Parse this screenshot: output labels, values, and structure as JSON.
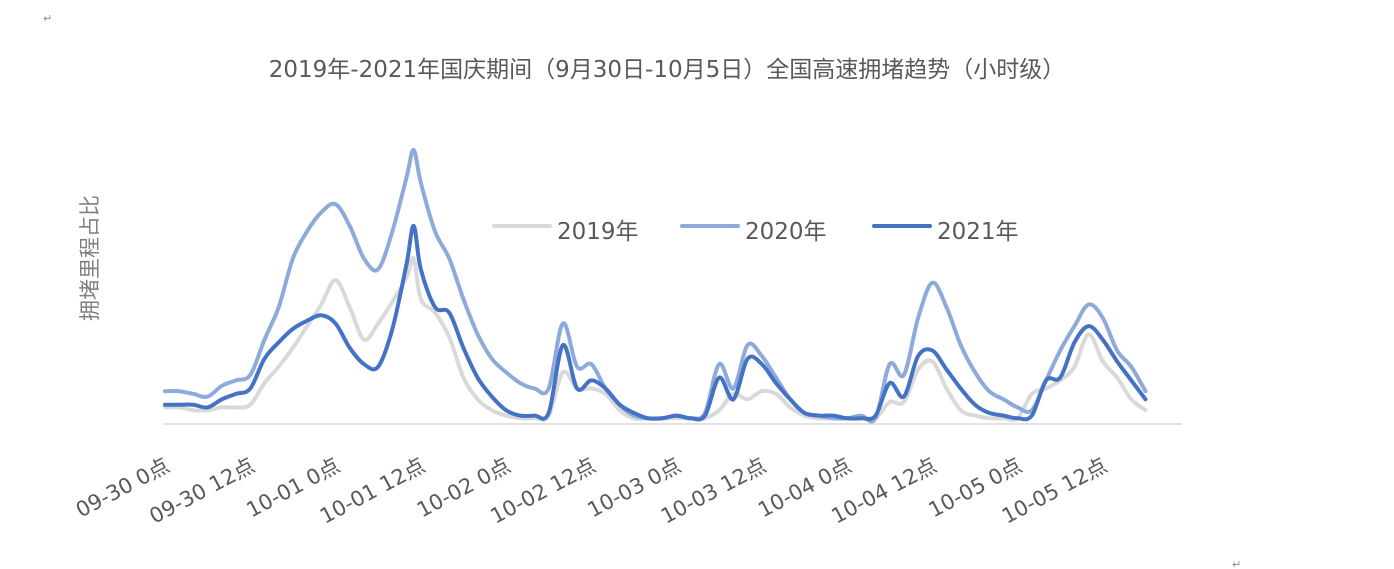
{
  "corner_marks": [
    "↵",
    "↵"
  ],
  "colors": {
    "2019年": "#d9d9d9",
    "2020年": "#8eaadb",
    "2021年": "#4472c4",
    "axis": "#d9d9d9"
  },
  "chart_data": {
    "type": "line",
    "title": "2019年-2021年国庆期间（9月30日-10月5日）全国高速拥堵趋势（小时级）",
    "xlabel": "",
    "ylabel": "拥堵里程占比",
    "y_tick_labels_shown": false,
    "grid": false,
    "legend_position": "top-center",
    "x_tick_labels": [
      "09-30 0点",
      "09-30 12点",
      "10-01 0点",
      "10-01 12点",
      "10-02 0点",
      "10-02 12点",
      "10-03 0点",
      "10-03 12点",
      "10-04 0点",
      "10-04 12点",
      "10-05 0点",
      "10-05 12点"
    ],
    "x_range_hours": [
      0,
      143
    ],
    "ylim": [
      0,
      100
    ],
    "series": [
      {
        "name": "2019年",
        "points": [
          [
            0,
            5
          ],
          [
            2,
            5
          ],
          [
            4,
            4
          ],
          [
            6,
            4
          ],
          [
            8,
            5
          ],
          [
            10,
            5
          ],
          [
            12,
            6
          ],
          [
            14,
            14
          ],
          [
            16,
            20
          ],
          [
            18,
            27
          ],
          [
            20,
            35
          ],
          [
            22,
            43
          ],
          [
            24,
            52
          ],
          [
            26,
            42
          ],
          [
            28,
            30
          ],
          [
            30,
            36
          ],
          [
            32,
            44
          ],
          [
            34,
            53
          ],
          [
            35,
            60
          ],
          [
            36,
            45
          ],
          [
            38,
            40
          ],
          [
            40,
            31
          ],
          [
            42,
            16
          ],
          [
            44,
            8
          ],
          [
            46,
            4
          ],
          [
            48,
            2
          ],
          [
            50,
            1
          ],
          [
            52,
            1
          ],
          [
            54,
            2
          ],
          [
            56,
            18
          ],
          [
            58,
            12
          ],
          [
            60,
            12
          ],
          [
            62,
            10
          ],
          [
            64,
            4
          ],
          [
            66,
            1
          ],
          [
            68,
            1
          ],
          [
            70,
            1
          ],
          [
            72,
            1
          ],
          [
            74,
            1
          ],
          [
            76,
            1
          ],
          [
            78,
            4
          ],
          [
            80,
            10
          ],
          [
            82,
            8
          ],
          [
            84,
            11
          ],
          [
            86,
            10
          ],
          [
            88,
            5
          ],
          [
            90,
            2
          ],
          [
            92,
            1
          ],
          [
            94,
            1
          ],
          [
            96,
            1
          ],
          [
            98,
            1
          ],
          [
            100,
            1
          ],
          [
            102,
            7
          ],
          [
            104,
            7
          ],
          [
            106,
            19
          ],
          [
            108,
            22
          ],
          [
            110,
            12
          ],
          [
            112,
            4
          ],
          [
            114,
            2
          ],
          [
            116,
            1
          ],
          [
            118,
            1
          ],
          [
            120,
            1
          ],
          [
            122,
            10
          ],
          [
            124,
            12
          ],
          [
            126,
            15
          ],
          [
            128,
            20
          ],
          [
            130,
            32
          ],
          [
            132,
            22
          ],
          [
            134,
            16
          ],
          [
            136,
            8
          ],
          [
            138,
            4
          ]
        ]
      },
      {
        "name": "2020年",
        "points": [
          [
            0,
            11
          ],
          [
            2,
            11
          ],
          [
            4,
            10
          ],
          [
            6,
            9
          ],
          [
            8,
            13
          ],
          [
            10,
            15
          ],
          [
            12,
            17
          ],
          [
            14,
            30
          ],
          [
            16,
            42
          ],
          [
            18,
            60
          ],
          [
            20,
            70
          ],
          [
            22,
            77
          ],
          [
            24,
            80
          ],
          [
            26,
            72
          ],
          [
            28,
            60
          ],
          [
            30,
            56
          ],
          [
            32,
            70
          ],
          [
            34,
            90
          ],
          [
            35,
            100
          ],
          [
            36,
            88
          ],
          [
            38,
            70
          ],
          [
            40,
            60
          ],
          [
            42,
            45
          ],
          [
            44,
            32
          ],
          [
            46,
            23
          ],
          [
            48,
            18
          ],
          [
            50,
            14
          ],
          [
            52,
            12
          ],
          [
            54,
            12
          ],
          [
            56,
            36
          ],
          [
            58,
            20
          ],
          [
            60,
            21
          ],
          [
            62,
            12
          ],
          [
            64,
            6
          ],
          [
            66,
            2
          ],
          [
            68,
            1
          ],
          [
            70,
            1
          ],
          [
            72,
            2
          ],
          [
            74,
            1
          ],
          [
            76,
            3
          ],
          [
            78,
            21
          ],
          [
            80,
            12
          ],
          [
            82,
            28
          ],
          [
            84,
            24
          ],
          [
            86,
            16
          ],
          [
            88,
            8
          ],
          [
            90,
            3
          ],
          [
            92,
            2
          ],
          [
            94,
            1
          ],
          [
            96,
            1
          ],
          [
            98,
            2
          ],
          [
            100,
            1
          ],
          [
            102,
            21
          ],
          [
            104,
            17
          ],
          [
            106,
            38
          ],
          [
            108,
            51
          ],
          [
            110,
            42
          ],
          [
            112,
            28
          ],
          [
            114,
            18
          ],
          [
            116,
            11
          ],
          [
            118,
            8
          ],
          [
            120,
            5
          ],
          [
            122,
            4
          ],
          [
            124,
            15
          ],
          [
            126,
            26
          ],
          [
            128,
            35
          ],
          [
            130,
            43
          ],
          [
            132,
            38
          ],
          [
            134,
            26
          ],
          [
            136,
            20
          ],
          [
            138,
            11
          ]
        ]
      },
      {
        "name": "2021年",
        "points": [
          [
            0,
            6
          ],
          [
            2,
            6
          ],
          [
            4,
            6
          ],
          [
            6,
            5
          ],
          [
            8,
            8
          ],
          [
            10,
            10
          ],
          [
            12,
            12
          ],
          [
            14,
            23
          ],
          [
            16,
            29
          ],
          [
            18,
            34
          ],
          [
            20,
            37
          ],
          [
            22,
            39
          ],
          [
            24,
            36
          ],
          [
            26,
            27
          ],
          [
            28,
            21
          ],
          [
            30,
            20
          ],
          [
            32,
            34
          ],
          [
            34,
            58
          ],
          [
            35,
            72
          ],
          [
            36,
            56
          ],
          [
            38,
            42
          ],
          [
            40,
            40
          ],
          [
            42,
            27
          ],
          [
            44,
            16
          ],
          [
            46,
            9
          ],
          [
            48,
            4
          ],
          [
            50,
            2
          ],
          [
            52,
            2
          ],
          [
            54,
            3
          ],
          [
            56,
            28
          ],
          [
            58,
            12
          ],
          [
            60,
            15
          ],
          [
            62,
            12
          ],
          [
            64,
            6
          ],
          [
            66,
            3
          ],
          [
            68,
            1
          ],
          [
            70,
            1
          ],
          [
            72,
            2
          ],
          [
            74,
            1
          ],
          [
            76,
            2
          ],
          [
            78,
            16
          ],
          [
            80,
            8
          ],
          [
            82,
            23
          ],
          [
            84,
            21
          ],
          [
            86,
            14
          ],
          [
            88,
            8
          ],
          [
            90,
            3
          ],
          [
            92,
            2
          ],
          [
            94,
            2
          ],
          [
            96,
            1
          ],
          [
            98,
            1
          ],
          [
            100,
            2
          ],
          [
            102,
            14
          ],
          [
            104,
            9
          ],
          [
            106,
            24
          ],
          [
            108,
            26
          ],
          [
            110,
            19
          ],
          [
            112,
            12
          ],
          [
            114,
            6
          ],
          [
            116,
            3
          ],
          [
            118,
            2
          ],
          [
            120,
            1
          ],
          [
            122,
            2
          ],
          [
            124,
            15
          ],
          [
            126,
            16
          ],
          [
            128,
            29
          ],
          [
            130,
            35
          ],
          [
            132,
            30
          ],
          [
            134,
            22
          ],
          [
            136,
            15
          ],
          [
            138,
            8
          ]
        ]
      }
    ]
  }
}
